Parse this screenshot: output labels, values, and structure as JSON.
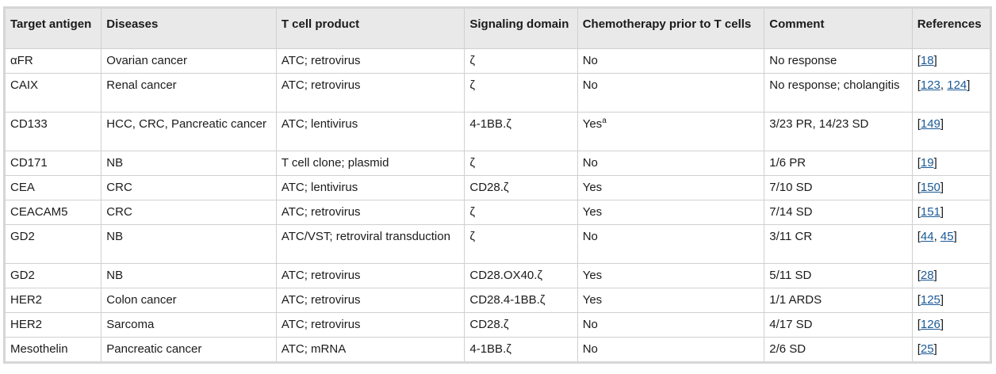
{
  "headers": {
    "target": "Target antigen",
    "diseases": "Diseases",
    "product": "T cell product",
    "signaling": "Signaling domain",
    "chemo": "Chemotherapy prior to T cells",
    "comment": "Comment",
    "references": "References"
  },
  "rows": [
    {
      "target": "αFR",
      "diseases": "Ovarian cancer",
      "product": "ATC; retrovirus",
      "signaling": "ζ",
      "chemo": "No",
      "chemo_sup": "",
      "comment": "No response",
      "refs": [
        "18"
      ]
    },
    {
      "target": "CAIX",
      "diseases": "Renal cancer",
      "product": "ATC; retrovirus",
      "signaling": "ζ",
      "chemo": "No",
      "chemo_sup": "",
      "comment": "No response; cholangitis",
      "refs": [
        "123",
        "124"
      ]
    },
    {
      "target": "CD133",
      "diseases": "HCC, CRC, Pancreatic cancer",
      "product": "ATC; lentivirus",
      "signaling": "4-1BB.ζ",
      "chemo": "Yes",
      "chemo_sup": "a",
      "comment": "3/23 PR, 14/23 SD",
      "refs": [
        "149"
      ]
    },
    {
      "target": "CD171",
      "diseases": "NB",
      "product": "T cell clone; plasmid",
      "signaling": "ζ",
      "chemo": "No",
      "chemo_sup": "",
      "comment": "1/6 PR",
      "refs": [
        "19"
      ]
    },
    {
      "target": "CEA",
      "diseases": "CRC",
      "product": "ATC; lentivirus",
      "signaling": "CD28.ζ",
      "chemo": "Yes",
      "chemo_sup": "",
      "comment": "7/10 SD",
      "refs": [
        "150"
      ]
    },
    {
      "target": "CEACAM5",
      "diseases": "CRC",
      "product": "ATC; retrovirus",
      "signaling": "ζ",
      "chemo": "Yes",
      "chemo_sup": "",
      "comment": "7/14 SD",
      "refs": [
        "151"
      ]
    },
    {
      "target": "GD2",
      "diseases": "NB",
      "product": "ATC/VST; retroviral transduction",
      "signaling": "ζ",
      "chemo": "No",
      "chemo_sup": "",
      "comment": "3/11 CR",
      "refs": [
        "44",
        "45"
      ]
    },
    {
      "target": "GD2",
      "diseases": "NB",
      "product": "ATC; retrovirus",
      "signaling": "CD28.OX40.ζ",
      "chemo": "Yes",
      "chemo_sup": "",
      "comment": "5/11 SD",
      "refs": [
        "28"
      ]
    },
    {
      "target": "HER2",
      "diseases": "Colon cancer",
      "product": "ATC; retrovirus",
      "signaling": "CD28.4-1BB.ζ",
      "chemo": "Yes",
      "chemo_sup": "",
      "comment": "1/1 ARDS",
      "refs": [
        "125"
      ]
    },
    {
      "target": "HER2",
      "diseases": "Sarcoma",
      "product": "ATC; retrovirus",
      "signaling": "CD28.ζ",
      "chemo": "No",
      "chemo_sup": "",
      "comment": "4/17 SD",
      "refs": [
        "126"
      ]
    },
    {
      "target": "Mesothelin",
      "diseases": "Pancreatic cancer",
      "product": "ATC; mRNA",
      "signaling": "4-1BB.ζ",
      "chemo": "No",
      "chemo_sup": "",
      "comment": "2/6 SD",
      "refs": [
        "25"
      ]
    }
  ],
  "ref_open": "[",
  "ref_sep": ", ",
  "ref_close": "]"
}
